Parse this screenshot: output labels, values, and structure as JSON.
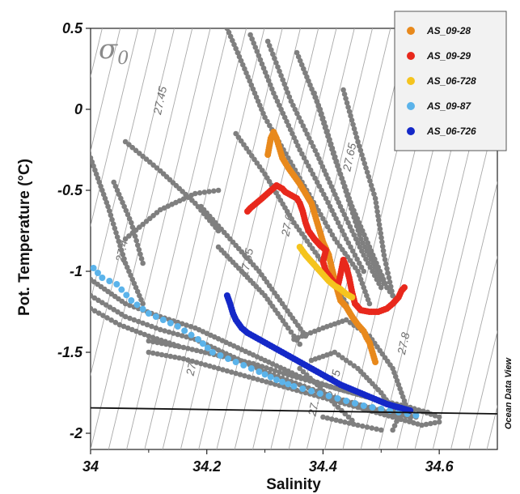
{
  "chart_data": {
    "type": "scatter",
    "xlabel": "Salinity",
    "ylabel": "Pot. Temperature (°C)",
    "xlim": [
      34.0,
      34.7
    ],
    "ylim": [
      -2.1,
      0.5
    ],
    "x_ticks": [
      "34",
      "34.2",
      "34.4",
      "34.6"
    ],
    "y_ticks": [
      "0.5",
      "0",
      "-0.5",
      "-1",
      "-1.5",
      "-2"
    ],
    "density_symbol": "σ",
    "density_subscript": "0",
    "credit": "Ocean Data View",
    "grid": false,
    "legend_position": "top-right",
    "isopycnal_labels": [
      {
        "text": "27.45",
        "s": 34.126,
        "t": 0.05
      },
      {
        "text": "27.65",
        "s": 34.452,
        "t": -0.3
      },
      {
        "text": "27.6",
        "s": 34.345,
        "t": -0.72
      },
      {
        "text": "27.4",
        "s": 34.06,
        "t": -0.88
      },
      {
        "text": "27.55",
        "s": 34.275,
        "t": -0.95
      },
      {
        "text": "27.",
        "s": 34.18,
        "t": -1.6
      },
      {
        "text": "27.8",
        "s": 34.545,
        "t": -1.45
      },
      {
        "text": "27.75",
        "s": 34.425,
        "t": -1.7
      },
      {
        "text": "27.",
        "s": 34.39,
        "t": -1.85
      }
    ],
    "freezing_line": {
      "color": "#111111",
      "points": [
        [
          34.0,
          -1.843
        ],
        [
          34.7,
          -1.88
        ]
      ]
    },
    "background": {
      "color": "#7f7f7f",
      "tracks": [
        [
          [
            34.235,
            0.5
          ],
          [
            34.265,
            0.25
          ],
          [
            34.3,
            -0.05
          ],
          [
            34.34,
            -0.3
          ],
          [
            34.38,
            -0.55
          ],
          [
            34.42,
            -0.8
          ],
          [
            34.46,
            -1.0
          ],
          [
            34.48,
            -1.2
          ]
        ],
        [
          [
            34.275,
            0.46
          ],
          [
            34.315,
            0.1
          ],
          [
            34.36,
            -0.25
          ],
          [
            34.405,
            -0.55
          ],
          [
            34.44,
            -0.8
          ],
          [
            34.47,
            -1.0
          ]
        ],
        [
          [
            34.305,
            0.42
          ],
          [
            34.345,
            0.05
          ],
          [
            34.39,
            -0.28
          ],
          [
            34.43,
            -0.6
          ],
          [
            34.47,
            -0.9
          ],
          [
            34.5,
            -1.1
          ]
        ],
        [
          [
            34.355,
            0.35
          ],
          [
            34.395,
            0.0
          ],
          [
            34.43,
            -0.4
          ],
          [
            34.465,
            -0.8
          ],
          [
            34.5,
            -1.05
          ],
          [
            34.52,
            -1.15
          ]
        ],
        [
          [
            34.385,
            0.1
          ],
          [
            34.42,
            -0.3
          ],
          [
            34.45,
            -0.6
          ],
          [
            34.48,
            -0.85
          ],
          [
            34.51,
            -1.1
          ],
          [
            34.52,
            -1.15
          ]
        ],
        [
          [
            34.435,
            0.12
          ],
          [
            34.46,
            -0.2
          ],
          [
            34.49,
            -0.55
          ],
          [
            34.505,
            -0.9
          ],
          [
            34.52,
            -1.15
          ]
        ],
        [
          [
            34.25,
            -0.15
          ],
          [
            34.3,
            -0.4
          ],
          [
            34.35,
            -0.7
          ],
          [
            34.4,
            -0.95
          ],
          [
            34.44,
            -1.2
          ]
        ],
        [
          [
            34.19,
            -0.6
          ],
          [
            34.24,
            -0.8
          ],
          [
            34.29,
            -1.0
          ],
          [
            34.33,
            -1.2
          ],
          [
            34.37,
            -1.4
          ]
        ],
        [
          [
            34.22,
            -0.85
          ],
          [
            34.26,
            -1.0
          ],
          [
            34.3,
            -1.15
          ],
          [
            34.34,
            -1.35
          ],
          [
            34.36,
            -1.45
          ]
        ],
        [
          [
            34.0,
            -0.3
          ],
          [
            34.03,
            -0.6
          ],
          [
            34.06,
            -0.95
          ],
          [
            34.09,
            -1.2
          ]
        ],
        [
          [
            34.04,
            -0.45
          ],
          [
            34.07,
            -0.7
          ],
          [
            34.09,
            -0.95
          ]
        ],
        [
          [
            34.06,
            -0.8
          ],
          [
            34.12,
            -0.62
          ],
          [
            34.18,
            -0.52
          ],
          [
            34.22,
            -0.5
          ]
        ],
        [
          [
            34.06,
            -0.2
          ],
          [
            34.12,
            -0.38
          ],
          [
            34.18,
            -0.58
          ],
          [
            34.22,
            -0.75
          ]
        ],
        [
          [
            34.0,
            -1.05
          ],
          [
            34.06,
            -1.2
          ],
          [
            34.12,
            -1.28
          ],
          [
            34.18,
            -1.35
          ],
          [
            34.24,
            -1.45
          ],
          [
            34.3,
            -1.55
          ],
          [
            34.36,
            -1.65
          ],
          [
            34.42,
            -1.72
          ],
          [
            34.48,
            -1.78
          ],
          [
            34.55,
            -1.84
          ],
          [
            34.6,
            -1.9
          ]
        ],
        [
          [
            34.0,
            -1.15
          ],
          [
            34.06,
            -1.28
          ],
          [
            34.12,
            -1.36
          ],
          [
            34.18,
            -1.42
          ],
          [
            34.24,
            -1.52
          ],
          [
            34.3,
            -1.62
          ],
          [
            34.36,
            -1.7
          ],
          [
            34.42,
            -1.78
          ],
          [
            34.48,
            -1.84
          ],
          [
            34.55,
            -1.9
          ]
        ],
        [
          [
            34.1,
            -1.5
          ],
          [
            34.16,
            -1.54
          ],
          [
            34.22,
            -1.6
          ],
          [
            34.28,
            -1.66
          ],
          [
            34.34,
            -1.72
          ],
          [
            34.4,
            -1.78
          ],
          [
            34.46,
            -1.84
          ],
          [
            34.52,
            -1.88
          ],
          [
            34.56,
            -1.9
          ]
        ],
        [
          [
            34.1,
            -1.43
          ],
          [
            34.16,
            -1.47
          ],
          [
            34.22,
            -1.52
          ],
          [
            34.28,
            -1.57
          ],
          [
            34.34,
            -1.64
          ],
          [
            34.4,
            -1.7
          ],
          [
            34.46,
            -1.76
          ],
          [
            34.52,
            -1.82
          ],
          [
            34.58,
            -1.87
          ]
        ],
        [
          [
            34.35,
            -1.42
          ],
          [
            34.4,
            -1.35
          ],
          [
            34.44,
            -1.3
          ],
          [
            34.48,
            -1.4
          ],
          [
            34.52,
            -1.6
          ],
          [
            34.54,
            -1.8
          ],
          [
            34.55,
            -1.92
          ]
        ],
        [
          [
            34.38,
            -1.55
          ],
          [
            34.42,
            -1.5
          ],
          [
            34.46,
            -1.6
          ],
          [
            34.5,
            -1.75
          ],
          [
            34.53,
            -1.9
          ],
          [
            34.52,
            -1.98
          ]
        ],
        [
          [
            34.42,
            -1.78
          ],
          [
            34.47,
            -1.85
          ],
          [
            34.52,
            -1.9
          ],
          [
            34.57,
            -1.95
          ],
          [
            34.6,
            -1.93
          ]
        ],
        [
          [
            34.4,
            -1.9
          ],
          [
            34.46,
            -1.95
          ],
          [
            34.5,
            -1.98
          ]
        ],
        [
          [
            34.0,
            -1.23
          ],
          [
            34.05,
            -1.33
          ],
          [
            34.1,
            -1.4
          ],
          [
            34.15,
            -1.46
          ]
        ],
        [
          [
            34.36,
            -1.6
          ],
          [
            34.39,
            -1.7
          ],
          [
            34.42,
            -1.82
          ],
          [
            34.45,
            -1.92
          ]
        ]
      ]
    },
    "series": [
      {
        "name": "AS_09-28",
        "color": "#e8891c",
        "points": [
          [
            34.305,
            -0.28
          ],
          [
            34.31,
            -0.18
          ],
          [
            34.315,
            -0.14
          ],
          [
            34.32,
            -0.18
          ],
          [
            34.325,
            -0.24
          ],
          [
            34.33,
            -0.3
          ],
          [
            34.34,
            -0.36
          ],
          [
            34.35,
            -0.41
          ],
          [
            34.36,
            -0.46
          ],
          [
            34.37,
            -0.52
          ],
          [
            34.38,
            -0.58
          ],
          [
            34.385,
            -0.64
          ],
          [
            34.39,
            -0.7
          ],
          [
            34.395,
            -0.76
          ],
          [
            34.4,
            -0.82
          ],
          [
            34.41,
            -0.9
          ],
          [
            34.415,
            -0.98
          ],
          [
            34.42,
            -1.05
          ],
          [
            34.425,
            -1.12
          ],
          [
            34.43,
            -1.18
          ],
          [
            34.44,
            -1.22
          ],
          [
            34.45,
            -1.28
          ],
          [
            34.46,
            -1.33
          ],
          [
            34.47,
            -1.37
          ],
          [
            34.475,
            -1.41
          ],
          [
            34.48,
            -1.44
          ],
          [
            34.485,
            -1.5
          ],
          [
            34.49,
            -1.56
          ]
        ]
      },
      {
        "name": "AS_09-29",
        "color": "#e8281c",
        "points": [
          [
            34.27,
            -0.63
          ],
          [
            34.275,
            -0.61
          ],
          [
            34.285,
            -0.58
          ],
          [
            34.295,
            -0.55
          ],
          [
            34.32,
            -0.47
          ],
          [
            34.33,
            -0.49
          ],
          [
            34.335,
            -0.51
          ],
          [
            34.345,
            -0.53
          ],
          [
            34.355,
            -0.55
          ],
          [
            34.36,
            -0.58
          ],
          [
            34.365,
            -0.63
          ],
          [
            34.37,
            -0.7
          ],
          [
            34.375,
            -0.75
          ],
          [
            34.385,
            -0.8
          ],
          [
            34.395,
            -0.84
          ],
          [
            34.405,
            -0.87
          ],
          [
            34.4,
            -0.94
          ],
          [
            34.405,
            -1.0
          ],
          [
            34.415,
            -1.05
          ],
          [
            34.425,
            -1.1
          ],
          [
            34.43,
            -1.02
          ],
          [
            34.435,
            -0.93
          ],
          [
            34.44,
            -0.97
          ],
          [
            34.445,
            -1.04
          ],
          [
            34.45,
            -1.13
          ],
          [
            34.455,
            -1.2
          ],
          [
            34.465,
            -1.24
          ],
          [
            34.48,
            -1.25
          ],
          [
            34.495,
            -1.25
          ],
          [
            34.51,
            -1.23
          ],
          [
            34.52,
            -1.2
          ],
          [
            34.53,
            -1.16
          ],
          [
            34.535,
            -1.12
          ],
          [
            34.54,
            -1.1
          ]
        ]
      },
      {
        "name": "AS_06-728",
        "color": "#f5c41e",
        "points": [
          [
            34.36,
            -0.85
          ],
          [
            34.37,
            -0.9
          ],
          [
            34.38,
            -0.94
          ],
          [
            34.39,
            -0.98
          ],
          [
            34.4,
            -1.02
          ],
          [
            34.41,
            -1.06
          ],
          [
            34.42,
            -1.09
          ],
          [
            34.43,
            -1.11
          ],
          [
            34.44,
            -1.14
          ],
          [
            34.45,
            -1.16
          ]
        ]
      },
      {
        "name": "AS_09-87",
        "color": "#5bb3ea",
        "points": [
          [
            34.005,
            -0.98
          ],
          [
            34.02,
            -1.04
          ],
          [
            34.045,
            -1.08
          ],
          [
            34.07,
            -1.18
          ],
          [
            34.1,
            -1.26
          ],
          [
            34.15,
            -1.34
          ],
          [
            34.185,
            -1.42
          ],
          [
            34.21,
            -1.5
          ],
          [
            34.25,
            -1.56
          ],
          [
            34.29,
            -1.62
          ],
          [
            34.32,
            -1.67
          ],
          [
            34.35,
            -1.71
          ],
          [
            34.38,
            -1.74
          ],
          [
            34.41,
            -1.77
          ],
          [
            34.44,
            -1.8
          ],
          [
            34.47,
            -1.83
          ],
          [
            34.5,
            -1.85
          ],
          [
            34.53,
            -1.87
          ],
          [
            34.56,
            -1.89
          ]
        ]
      },
      {
        "name": "AS_06-726",
        "color": "#1428c8",
        "points": [
          [
            34.235,
            -1.15
          ],
          [
            34.24,
            -1.2
          ],
          [
            34.245,
            -1.26
          ],
          [
            34.25,
            -1.3
          ],
          [
            34.26,
            -1.35
          ],
          [
            34.27,
            -1.38
          ],
          [
            34.29,
            -1.42
          ],
          [
            34.31,
            -1.46
          ],
          [
            34.33,
            -1.5
          ],
          [
            34.35,
            -1.54
          ],
          [
            34.37,
            -1.58
          ],
          [
            34.39,
            -1.62
          ],
          [
            34.41,
            -1.66
          ],
          [
            34.43,
            -1.7
          ],
          [
            34.45,
            -1.73
          ],
          [
            34.47,
            -1.76
          ],
          [
            34.49,
            -1.79
          ],
          [
            34.51,
            -1.82
          ],
          [
            34.53,
            -1.84
          ],
          [
            34.55,
            -1.86
          ]
        ]
      }
    ]
  }
}
